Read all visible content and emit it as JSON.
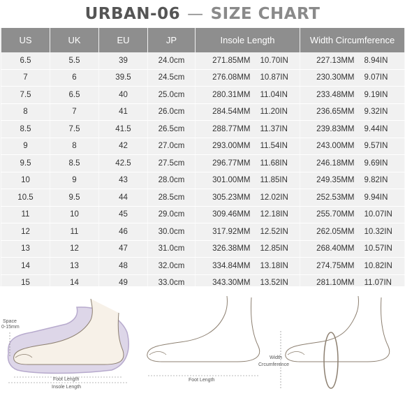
{
  "title": {
    "brand": "URBAN-06",
    "dash": "—",
    "chart": "SIZE CHART"
  },
  "table": {
    "headers": [
      "US",
      "UK",
      "EU",
      "JP",
      "Insole Length",
      "Width Circumference"
    ],
    "rows": [
      [
        "6.5",
        "5.5",
        "39",
        "24.0cm",
        "271.85MM",
        "10.70IN",
        "227.13MM",
        "8.94IN"
      ],
      [
        "7",
        "6",
        "39.5",
        "24.5cm",
        "276.08MM",
        "10.87IN",
        "230.30MM",
        "9.07IN"
      ],
      [
        "7.5",
        "6.5",
        "40",
        "25.0cm",
        "280.31MM",
        "11.04IN",
        "233.48MM",
        "9.19IN"
      ],
      [
        "8",
        "7",
        "41",
        "26.0cm",
        "284.54MM",
        "11.20IN",
        "236.65MM",
        "9.32IN"
      ],
      [
        "8.5",
        "7.5",
        "41.5",
        "26.5cm",
        "288.77MM",
        "11.37IN",
        "239.83MM",
        "9.44IN"
      ],
      [
        "9",
        "8",
        "42",
        "27.0cm",
        "293.00MM",
        "11.54IN",
        "243.00MM",
        "9.57IN"
      ],
      [
        "9.5",
        "8.5",
        "42.5",
        "27.5cm",
        "296.77MM",
        "11.68IN",
        "246.18MM",
        "9.69IN"
      ],
      [
        "10",
        "9",
        "43",
        "28.0cm",
        "301.00MM",
        "11.85IN",
        "249.35MM",
        "9.82IN"
      ],
      [
        "10.5",
        "9.5",
        "44",
        "28.5cm",
        "305.23MM",
        "12.02IN",
        "252.53MM",
        "9.94IN"
      ],
      [
        "11",
        "10",
        "45",
        "29.0cm",
        "309.46MM",
        "12.18IN",
        "255.70MM",
        "10.07IN"
      ],
      [
        "12",
        "11",
        "46",
        "30.0cm",
        "317.92MM",
        "12.52IN",
        "262.05MM",
        "10.32IN"
      ],
      [
        "13",
        "12",
        "47",
        "31.0cm",
        "326.38MM",
        "12.85IN",
        "268.40MM",
        "10.57IN"
      ],
      [
        "14",
        "13",
        "48",
        "32.0cm",
        "334.84MM",
        "13.18IN",
        "274.75MM",
        "10.82IN"
      ],
      [
        "15",
        "14",
        "49",
        "33.0cm",
        "343.30MM",
        "13.52IN",
        "281.10MM",
        "11.07IN"
      ]
    ]
  },
  "illustration": {
    "space_label_1": "Space",
    "space_label_2": "0-15mm",
    "foot_length_1": "Foot Length",
    "insole_length": "Insole Length",
    "foot_length_2": "Foot Length",
    "width_label_1": "Width",
    "width_label_2": "Crcumference"
  },
  "colors": {
    "header_bg": "#8e8e8e",
    "table_bg": "#f1f1f1",
    "insole": "#c8c0d8"
  }
}
